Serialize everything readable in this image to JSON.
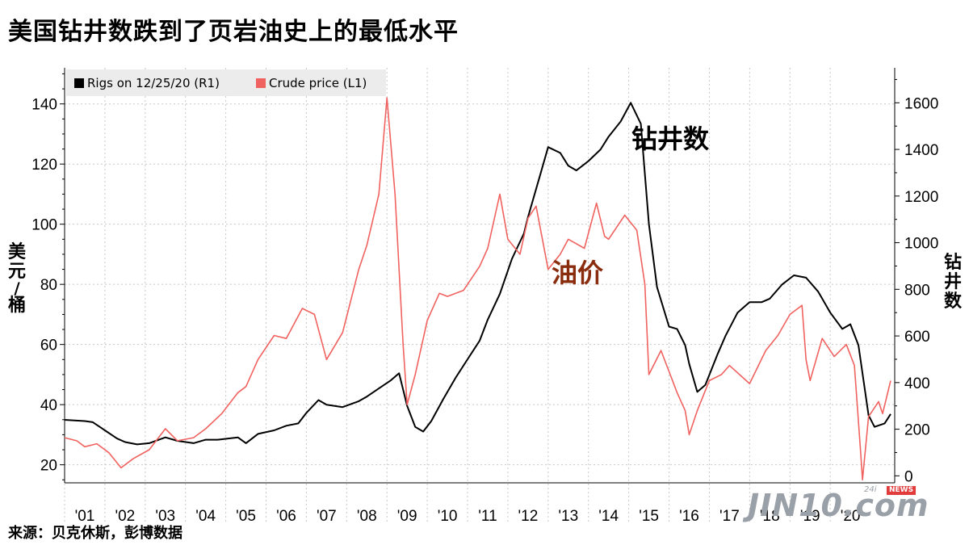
{
  "title": "美国钻井数跌到了页岩油史上的最低水平",
  "annotations": {
    "rigs": "钻井数",
    "crude": "油价"
  },
  "source": "来源：贝克休斯，彭博数据",
  "logo": {
    "main": "JIN10.com",
    "sup": "24i",
    "badge": "NEWS"
  },
  "colors": {
    "rigs": "#000000",
    "crude": "#f0625f",
    "crude_annotation": "#8a2d0e",
    "legend_bg": "#ececec",
    "grid": "#c8c8c8"
  },
  "chart_data": {
    "type": "line",
    "title": "美国钻井数跌到了页岩油史上的最低水平",
    "x_unit": "year",
    "xlim": [
      2000.5,
      2021.1
    ],
    "x_ticks": [
      {
        "x": 2001,
        "label": "'01"
      },
      {
        "x": 2002,
        "label": "'02"
      },
      {
        "x": 2003,
        "label": "'03"
      },
      {
        "x": 2004,
        "label": "'04"
      },
      {
        "x": 2005,
        "label": "'05"
      },
      {
        "x": 2006,
        "label": "'06"
      },
      {
        "x": 2007,
        "label": "'07"
      },
      {
        "x": 2008,
        "label": "'08"
      },
      {
        "x": 2009,
        "label": "'09"
      },
      {
        "x": 2010,
        "label": "'10"
      },
      {
        "x": 2011,
        "label": "'11"
      },
      {
        "x": 2012,
        "label": "'12"
      },
      {
        "x": 2013,
        "label": "'13"
      },
      {
        "x": 2014,
        "label": "'14"
      },
      {
        "x": 2015,
        "label": "'15"
      },
      {
        "x": 2016,
        "label": "'16"
      },
      {
        "x": 2017,
        "label": "'17"
      },
      {
        "x": 2018,
        "label": "'18"
      },
      {
        "x": 2019,
        "label": "'19"
      },
      {
        "x": 2020,
        "label": "'20"
      }
    ],
    "y_left": {
      "label": "美元/桶",
      "ylim": [
        14,
        152
      ],
      "ticks": [
        20,
        40,
        60,
        80,
        100,
        120,
        140
      ]
    },
    "y_right": {
      "label": "钻井数",
      "ylim": [
        -30,
        1750
      ],
      "ticks": [
        0,
        200,
        400,
        600,
        800,
        1000,
        1200,
        1400,
        1600
      ]
    },
    "legend": {
      "placement": "top-left"
    },
    "grid": true,
    "series": [
      {
        "name": "Rigs on 12/25/20 (R1)",
        "axis": "right",
        "points": [
          [
            2000.5,
            240
          ],
          [
            2001.0,
            235
          ],
          [
            2001.2,
            230
          ],
          [
            2001.5,
            195
          ],
          [
            2001.8,
            160
          ],
          [
            2002.0,
            145
          ],
          [
            2002.3,
            135
          ],
          [
            2002.6,
            140
          ],
          [
            2003.0,
            165
          ],
          [
            2003.3,
            150
          ],
          [
            2003.7,
            140
          ],
          [
            2004.0,
            155
          ],
          [
            2004.3,
            155
          ],
          [
            2004.8,
            165
          ],
          [
            2005.0,
            140
          ],
          [
            2005.3,
            180
          ],
          [
            2005.7,
            195
          ],
          [
            2006.0,
            215
          ],
          [
            2006.3,
            225
          ],
          [
            2006.5,
            270
          ],
          [
            2006.8,
            325
          ],
          [
            2007.0,
            305
          ],
          [
            2007.4,
            295
          ],
          [
            2007.8,
            320
          ],
          [
            2008.0,
            340
          ],
          [
            2008.3,
            375
          ],
          [
            2008.6,
            410
          ],
          [
            2008.8,
            440
          ],
          [
            2009.0,
            300
          ],
          [
            2009.2,
            210
          ],
          [
            2009.4,
            190
          ],
          [
            2009.6,
            235
          ],
          [
            2009.9,
            330
          ],
          [
            2010.2,
            420
          ],
          [
            2010.5,
            500
          ],
          [
            2010.8,
            580
          ],
          [
            2011.0,
            670
          ],
          [
            2011.3,
            780
          ],
          [
            2011.6,
            930
          ],
          [
            2011.9,
            1040
          ],
          [
            2012.0,
            1110
          ],
          [
            2012.3,
            1290
          ],
          [
            2012.5,
            1410
          ],
          [
            2012.8,
            1385
          ],
          [
            2013.0,
            1330
          ],
          [
            2013.2,
            1310
          ],
          [
            2013.5,
            1350
          ],
          [
            2013.8,
            1400
          ],
          [
            2014.0,
            1455
          ],
          [
            2014.3,
            1520
          ],
          [
            2014.55,
            1600
          ],
          [
            2014.8,
            1510
          ],
          [
            2015.0,
            1080
          ],
          [
            2015.2,
            810
          ],
          [
            2015.5,
            640
          ],
          [
            2015.7,
            630
          ],
          [
            2015.9,
            560
          ],
          [
            2016.0,
            480
          ],
          [
            2016.2,
            360
          ],
          [
            2016.4,
            390
          ],
          [
            2016.7,
            520
          ],
          [
            2016.9,
            600
          ],
          [
            2017.2,
            700
          ],
          [
            2017.5,
            745
          ],
          [
            2017.8,
            745
          ],
          [
            2018.0,
            760
          ],
          [
            2018.3,
            820
          ],
          [
            2018.6,
            860
          ],
          [
            2018.9,
            850
          ],
          [
            2019.2,
            790
          ],
          [
            2019.5,
            700
          ],
          [
            2019.8,
            630
          ],
          [
            2020.0,
            650
          ],
          [
            2020.2,
            560
          ],
          [
            2020.45,
            260
          ],
          [
            2020.6,
            210
          ],
          [
            2020.85,
            225
          ],
          [
            2021.0,
            265
          ]
        ]
      },
      {
        "name": "Crude price (L1)",
        "axis": "left",
        "points": [
          [
            2000.5,
            29
          ],
          [
            2000.8,
            28
          ],
          [
            2001.0,
            26
          ],
          [
            2001.3,
            27
          ],
          [
            2001.6,
            24
          ],
          [
            2001.9,
            19
          ],
          [
            2002.2,
            22
          ],
          [
            2002.6,
            25
          ],
          [
            2003.0,
            32
          ],
          [
            2003.3,
            28
          ],
          [
            2003.7,
            29
          ],
          [
            2004.0,
            32
          ],
          [
            2004.4,
            37
          ],
          [
            2004.8,
            44
          ],
          [
            2005.0,
            46
          ],
          [
            2005.3,
            55
          ],
          [
            2005.7,
            63
          ],
          [
            2006.0,
            62
          ],
          [
            2006.4,
            72
          ],
          [
            2006.7,
            70
          ],
          [
            2007.0,
            55
          ],
          [
            2007.4,
            64
          ],
          [
            2007.8,
            85
          ],
          [
            2008.0,
            93
          ],
          [
            2008.3,
            110
          ],
          [
            2008.5,
            142
          ],
          [
            2008.7,
            110
          ],
          [
            2008.9,
            60
          ],
          [
            2009.0,
            40
          ],
          [
            2009.2,
            50
          ],
          [
            2009.5,
            68
          ],
          [
            2009.8,
            77
          ],
          [
            2010.0,
            76
          ],
          [
            2010.4,
            78
          ],
          [
            2010.8,
            86
          ],
          [
            2011.0,
            92
          ],
          [
            2011.3,
            110
          ],
          [
            2011.5,
            95
          ],
          [
            2011.8,
            90
          ],
          [
            2012.0,
            102
          ],
          [
            2012.2,
            106
          ],
          [
            2012.5,
            85
          ],
          [
            2012.8,
            90
          ],
          [
            2013.0,
            95
          ],
          [
            2013.4,
            92
          ],
          [
            2013.7,
            107
          ],
          [
            2013.9,
            96
          ],
          [
            2014.0,
            95
          ],
          [
            2014.4,
            103
          ],
          [
            2014.7,
            98
          ],
          [
            2014.9,
            80
          ],
          [
            2015.0,
            50
          ],
          [
            2015.3,
            58
          ],
          [
            2015.7,
            44
          ],
          [
            2015.9,
            38
          ],
          [
            2016.0,
            30
          ],
          [
            2016.2,
            38
          ],
          [
            2016.5,
            48
          ],
          [
            2016.8,
            50
          ],
          [
            2017.0,
            53
          ],
          [
            2017.5,
            47
          ],
          [
            2017.9,
            58
          ],
          [
            2018.2,
            63
          ],
          [
            2018.5,
            70
          ],
          [
            2018.8,
            73
          ],
          [
            2018.9,
            55
          ],
          [
            2019.0,
            48
          ],
          [
            2019.3,
            62
          ],
          [
            2019.6,
            56
          ],
          [
            2019.9,
            60
          ],
          [
            2020.1,
            53
          ],
          [
            2020.25,
            25
          ],
          [
            2020.3,
            15
          ],
          [
            2020.45,
            36
          ],
          [
            2020.7,
            41
          ],
          [
            2020.8,
            37
          ],
          [
            2021.0,
            48
          ]
        ]
      }
    ]
  }
}
